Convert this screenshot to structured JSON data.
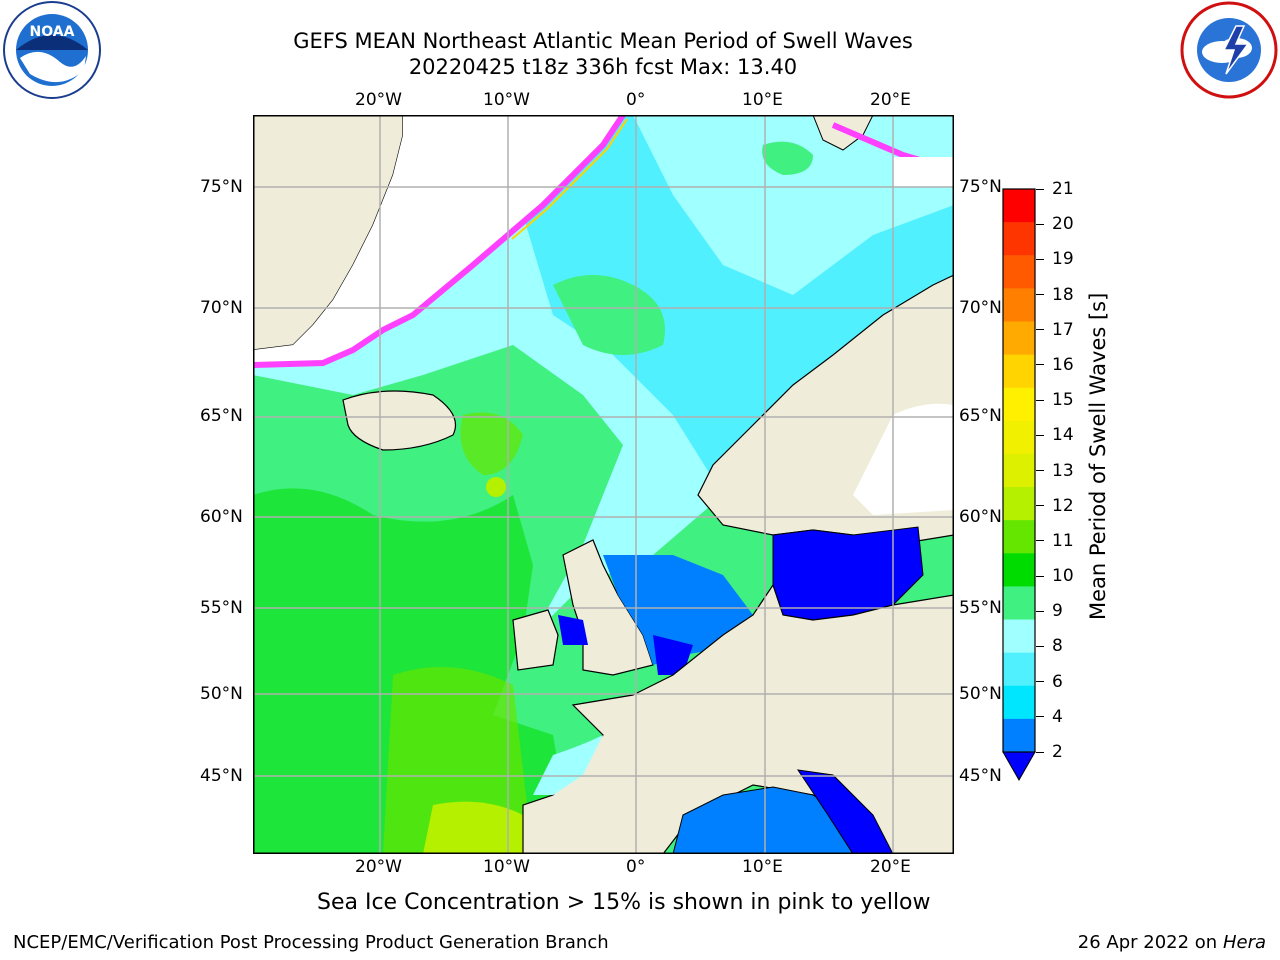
{
  "title": {
    "line1": "GEFS MEAN Northeast Atlantic Mean Period of Swell Waves",
    "line2": "20220425 t18z 336h fcst   Max: 13.40"
  },
  "logos": {
    "noaa": {
      "name": "noaa-logo",
      "text": "NOAA"
    },
    "nws": {
      "name": "nws-logo"
    }
  },
  "map": {
    "lon_labels": [
      "20°W",
      "10°W",
      "0°",
      "10°E",
      "20°E"
    ],
    "lat_labels": [
      "75°N",
      "70°N",
      "65°N",
      "60°N",
      "55°N",
      "50°N",
      "45°N"
    ],
    "ocean_color": "#40f080",
    "land_color": "#efedd9",
    "grid_color": "#b0b0b0"
  },
  "colorbar": {
    "label": "Mean Period of Swell Waves [s]",
    "ticks": [
      "21",
      "20",
      "19",
      "18",
      "17",
      "16",
      "15",
      "14",
      "13",
      "12",
      "11",
      "10",
      "9",
      "8",
      "6",
      "4",
      "2"
    ],
    "colors": [
      "#ff0000",
      "#ff3500",
      "#ff5a00",
      "#ff8000",
      "#ffaa00",
      "#ffd400",
      "#fff000",
      "#f0f000",
      "#dcf000",
      "#b4f000",
      "#64e600",
      "#00dc00",
      "#40f080",
      "#a0ffff",
      "#50f0ff",
      "#00e6ff",
      "#0080ff"
    ],
    "under_color": "#0000ff"
  },
  "caption": "Sea Ice Concentration > 15% is shown in pink to yellow",
  "footer": {
    "left": "NCEP/EMC/Verification Post Processing Product Generation Branch",
    "right_date": "26 Apr 2022 on ",
    "right_host": "Hera"
  }
}
